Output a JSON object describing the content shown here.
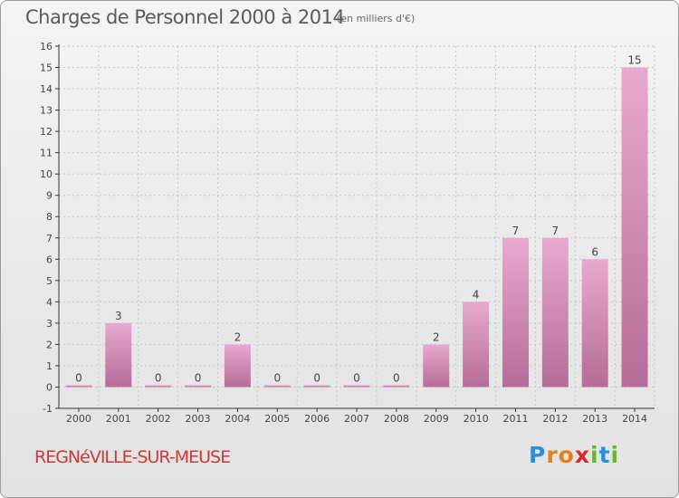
{
  "title": "Charges de Personnel 2000 à 2014",
  "subtitle": "(en milliers d'€)",
  "commune": "REGNéVILLE-SUR-MEUSE",
  "logo": {
    "letters": [
      "P",
      "r",
      "o",
      "x",
      "i",
      "t",
      "i"
    ],
    "colors": [
      "#2a8fd6",
      "#e0801e",
      "#e0801e",
      "#d22c2c",
      "#6ab52e",
      "#2a8fd6",
      "#6ab52e"
    ]
  },
  "colors": {
    "bar_light": "#e8a9cf",
    "bar_dark": "#b66c98",
    "axis": "#333333",
    "grid": "#c8c8c8"
  },
  "chart_data": {
    "type": "bar",
    "title": "Charges de Personnel 2000 à 2014",
    "subtitle": "(en milliers d'€)",
    "categories": [
      "2000",
      "2001",
      "2002",
      "2003",
      "2004",
      "2005",
      "2006",
      "2007",
      "2008",
      "2009",
      "2010",
      "2011",
      "2012",
      "2013",
      "2014"
    ],
    "values": [
      0,
      3,
      0,
      0,
      2,
      0,
      0,
      0,
      0,
      2,
      4,
      7,
      7,
      6,
      15
    ],
    "data_labels": [
      "0",
      "3",
      "0",
      "0",
      "2",
      "0",
      "0",
      "0",
      "0",
      "2",
      "4",
      "7",
      "7",
      "6",
      "15"
    ],
    "ylim": [
      -1,
      16
    ],
    "yticks": [
      -1,
      0,
      1,
      2,
      3,
      4,
      5,
      6,
      7,
      8,
      9,
      10,
      11,
      12,
      13,
      14,
      15,
      16
    ],
    "grid": true,
    "xlabel": "",
    "ylabel": ""
  }
}
